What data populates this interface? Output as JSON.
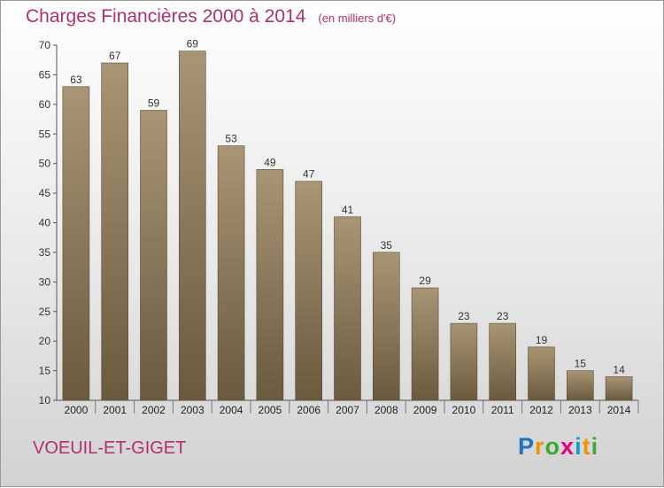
{
  "title": "Charges Financières 2000 à 2014",
  "unit": "(en milliers d'€)",
  "commune": "VOEUIL-ET-GIGET",
  "logo": {
    "letters": [
      "P",
      "r",
      "o",
      "x",
      "i",
      "t",
      "i"
    ]
  },
  "colors": {
    "title": "#b0306e",
    "bar_top": "#a89575",
    "bar_bottom": "#6a5a3e",
    "logo": [
      "#1e73be",
      "#f39200",
      "#3aaa35",
      "#e5007d",
      "#00a0dc",
      "#f39200",
      "#3aaa35"
    ]
  },
  "chart_data": {
    "type": "bar",
    "title": "Charges Financières 2000 à 2014",
    "subtitle": "(en milliers d'€)",
    "xlabel": "",
    "ylabel": "",
    "categories": [
      "2000",
      "2001",
      "2002",
      "2003",
      "2004",
      "2005",
      "2006",
      "2007",
      "2008",
      "2009",
      "2010",
      "2011",
      "2012",
      "2013",
      "2014"
    ],
    "values": [
      63,
      67,
      59,
      69,
      53,
      49,
      47,
      41,
      35,
      29,
      23,
      23,
      19,
      15,
      14
    ],
    "ylim": [
      10,
      70
    ],
    "yticks": [
      10,
      15,
      20,
      25,
      30,
      35,
      40,
      45,
      50,
      55,
      60,
      65,
      70
    ],
    "grid": false,
    "legend": "none"
  }
}
